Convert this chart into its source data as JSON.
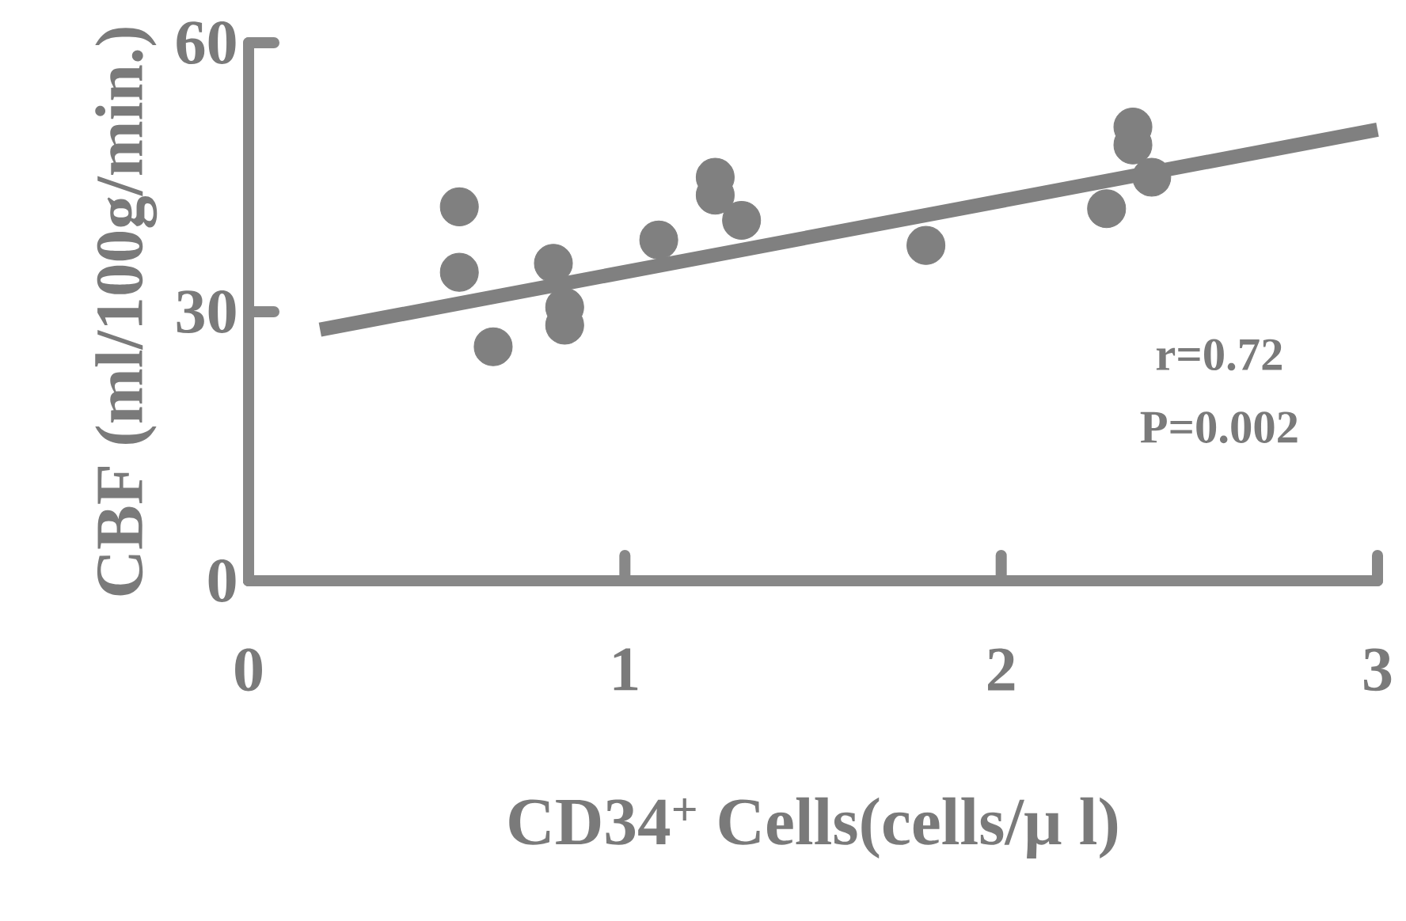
{
  "chart_data": {
    "type": "scatter",
    "xlabel": "CD34$^{+}$ Cells(cells/μ l)",
    "ylabel": "CBF (ml/100g/min.)",
    "xlim": [
      0,
      3
    ],
    "ylim": [
      0,
      60
    ],
    "xticks": [
      0,
      1,
      2,
      3
    ],
    "yticks": [
      0,
      30,
      60
    ],
    "annotations": [
      "r=0.72",
      "P=0.002"
    ],
    "series": [
      {
        "marker": "circle",
        "color": "#808080",
        "x": [
          0.56,
          0.56,
          0.65,
          0.81,
          0.84,
          0.84,
          1.09,
          1.24,
          1.24,
          1.31,
          1.8,
          2.28,
          2.35,
          2.35,
          2.4
        ],
        "values": [
          41.7,
          34.4,
          26.1,
          35.4,
          30.5,
          28.5,
          38,
          45,
          43,
          40.2,
          37.4,
          41.5,
          50.6,
          48.6,
          45
        ]
      },
      {
        "type": "line",
        "marker": "none",
        "color": "#808080",
        "x": [
          0.19,
          3
        ],
        "values": [
          28,
          50.3
        ]
      }
    ]
  }
}
